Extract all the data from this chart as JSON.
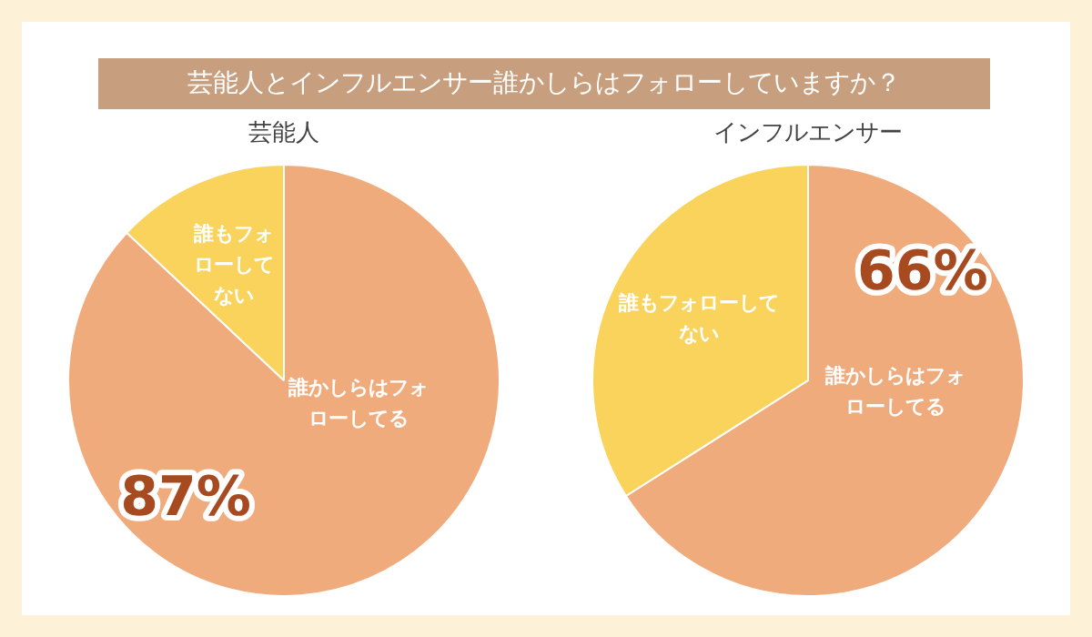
{
  "chart_data": [
    {
      "type": "pie",
      "title": "芸能人とインフルエンサー誰かしらはフォローしていますか？",
      "subtitle": "芸能人",
      "categories": [
        "誰かしらはフォローしてる",
        "誰もフォローしてない"
      ],
      "values": [
        87,
        13
      ],
      "colors": [
        "#f0ab7c",
        "#f9d35c"
      ],
      "value_labels": [
        "87%",
        null
      ]
    },
    {
      "type": "pie",
      "title": "インフルエンサー",
      "categories": [
        "誰かしらはフォローしてる",
        "誰もフォローしてない"
      ],
      "values": [
        66,
        34
      ],
      "colors": [
        "#f0ab7c",
        "#f9d35c"
      ],
      "value_labels": [
        "66%",
        null
      ]
    }
  ]
}
